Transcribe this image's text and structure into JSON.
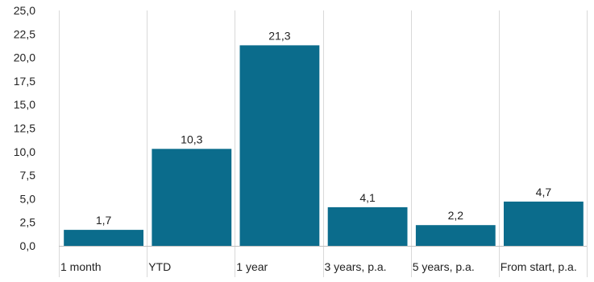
{
  "chart_data": {
    "type": "bar",
    "categories": [
      "1 month",
      "YTD",
      "1 year",
      "3 years, p.a.",
      "5 years, p.a.",
      "From start, p.a."
    ],
    "values": [
      1.7,
      10.3,
      21.3,
      4.1,
      2.2,
      4.7
    ],
    "data_labels": [
      "1,7",
      "10,3",
      "21,3",
      "4,1",
      "2,2",
      "4,7"
    ],
    "y_ticks": [
      0,
      2.5,
      5,
      7.5,
      10,
      12.5,
      15,
      17.5,
      20,
      22.5,
      25
    ],
    "y_tick_labels": [
      "0,0",
      "2,5",
      "5,0",
      "7,5",
      "10,0",
      "12,5",
      "15,0",
      "17,5",
      "20,0",
      "22,5",
      "25,0"
    ],
    "ylim": [
      0,
      25
    ],
    "title": "",
    "xlabel": "",
    "ylabel": "",
    "grid": "vertical-category-separators",
    "legend": "none",
    "bar_color": "#0b6c8c"
  }
}
